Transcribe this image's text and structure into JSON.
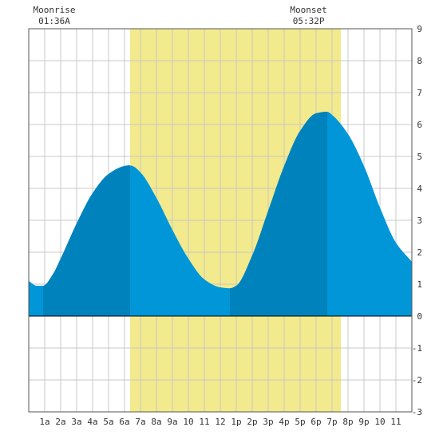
{
  "chart_data": {
    "type": "area",
    "title": "",
    "xlabel": "",
    "ylabel": "",
    "xlim": [
      0,
      24
    ],
    "ylim": [
      -3,
      9
    ],
    "grid": true,
    "x_ticks": [
      {
        "x": 1,
        "label": "1a"
      },
      {
        "x": 2,
        "label": "2a"
      },
      {
        "x": 3,
        "label": "3a"
      },
      {
        "x": 4,
        "label": "4a"
      },
      {
        "x": 5,
        "label": "5a"
      },
      {
        "x": 6,
        "label": "6a"
      },
      {
        "x": 7,
        "label": "7a"
      },
      {
        "x": 8,
        "label": "8a"
      },
      {
        "x": 9,
        "label": "9a"
      },
      {
        "x": 10,
        "label": "10"
      },
      {
        "x": 11,
        "label": "11"
      },
      {
        "x": 12,
        "label": "12"
      },
      {
        "x": 13,
        "label": "1p"
      },
      {
        "x": 14,
        "label": "2p"
      },
      {
        "x": 15,
        "label": "3p"
      },
      {
        "x": 16,
        "label": "4p"
      },
      {
        "x": 17,
        "label": "5p"
      },
      {
        "x": 18,
        "label": "6p"
      },
      {
        "x": 19,
        "label": "7p"
      },
      {
        "x": 20,
        "label": "8p"
      },
      {
        "x": 21,
        "label": "9p"
      },
      {
        "x": 22,
        "label": "10"
      },
      {
        "x": 23,
        "label": "11"
      }
    ],
    "y_ticks": [
      -3,
      -2,
      -1,
      0,
      1,
      2,
      3,
      4,
      5,
      6,
      7,
      8,
      9
    ],
    "series": [
      {
        "x": [
          0,
          0.5,
          0.9,
          1.5,
          2,
          3,
          4,
          5,
          6,
          6.3,
          6.5,
          7,
          8,
          9,
          10,
          11,
          12,
          12.6,
          13,
          14,
          15,
          16,
          17,
          18,
          18.7,
          19,
          20,
          21,
          22,
          23,
          24
        ],
        "values": [
          1.1,
          0.95,
          0.95,
          1.3,
          1.8,
          2.9,
          3.85,
          4.45,
          4.7,
          4.72,
          4.7,
          4.5,
          3.7,
          2.7,
          1.8,
          1.15,
          0.9,
          0.87,
          0.95,
          1.9,
          3.3,
          4.7,
          5.8,
          6.35,
          6.4,
          6.3,
          5.7,
          4.7,
          3.4,
          2.3,
          1.7
        ]
      }
    ],
    "daylight": {
      "start": 6.35,
      "end": 19.55
    },
    "rising_segments": [
      [
        0.9,
        6.35
      ],
      [
        12.6,
        18.7
      ]
    ],
    "annotations": [
      {
        "label": "Moonrise",
        "time": "01:36A",
        "x": 1.6
      },
      {
        "label": "Moonset",
        "time": "05:32P",
        "x": 17.53
      }
    ],
    "colors": {
      "daylight": "#f2ea8c",
      "tide": "#0096d8",
      "tide_rising": "#0082bd",
      "grid": "#c8c8c8",
      "plot_bg": "#ffffff"
    }
  }
}
